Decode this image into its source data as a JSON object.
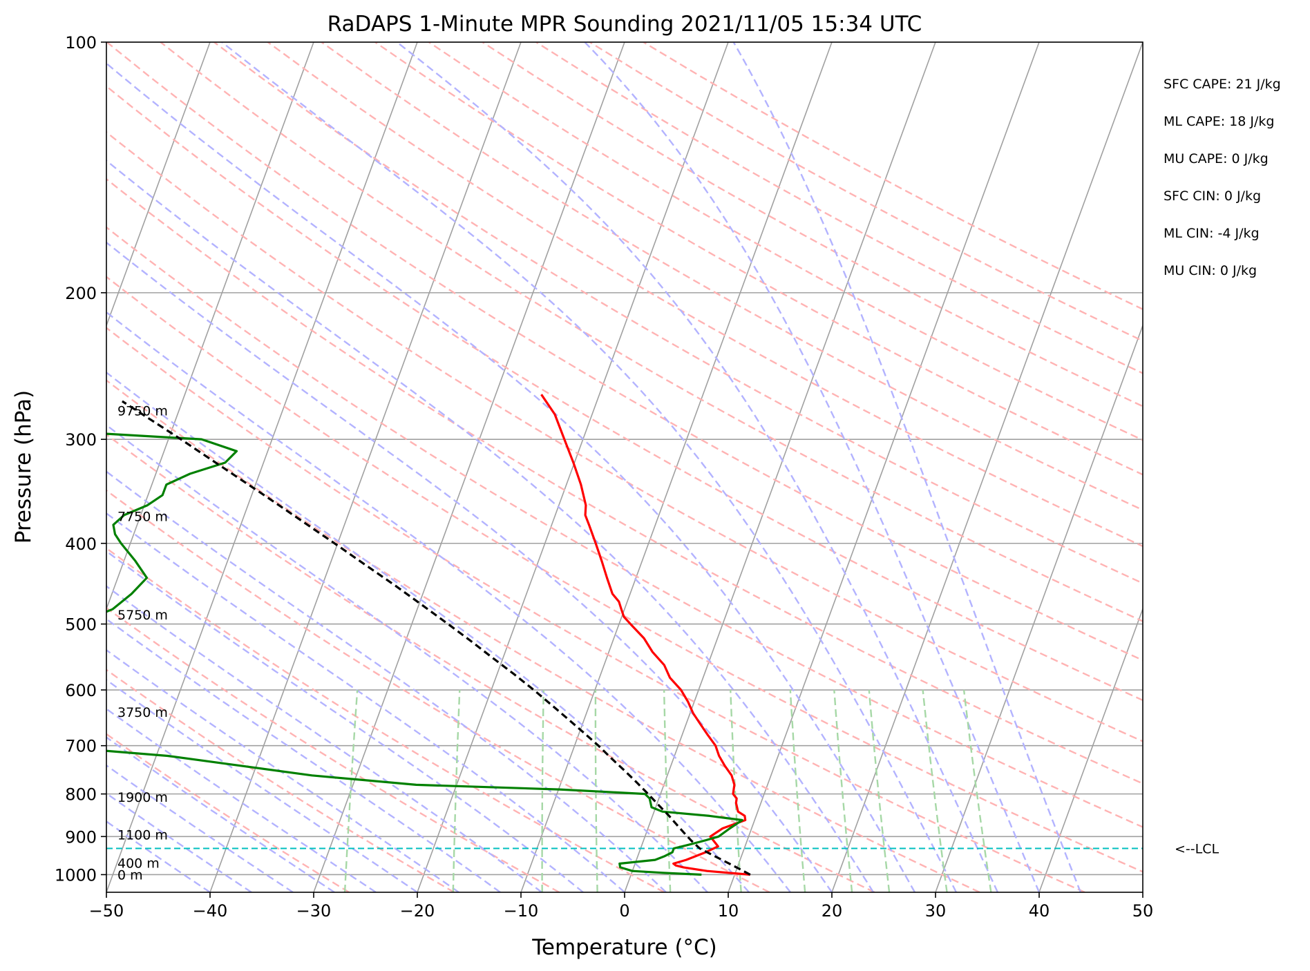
{
  "chart_data": {
    "type": "line",
    "title": "RaDAPS 1-Minute MPR Sounding 2021/11/05 15:34 UTC",
    "xlabel": "Temperature (°C)",
    "ylabel": "Pressure (hPa)",
    "xlim": [
      -50,
      50
    ],
    "ylim": [
      1050,
      100
    ],
    "y_scale": "log",
    "grid": true,
    "x_ticks": [
      -50,
      -40,
      -30,
      -20,
      -10,
      0,
      10,
      20,
      30,
      40,
      50
    ],
    "x_tick_labels": [
      "−50",
      "−40",
      "−30",
      "−20",
      "−10",
      "0",
      "10",
      "20",
      "30",
      "40",
      "50"
    ],
    "y_ticks": [
      1000,
      900,
      800,
      700,
      600,
      500,
      400,
      300,
      200,
      100
    ],
    "y_tick_labels": [
      "1000",
      "900",
      "800",
      "700",
      "600",
      "500",
      "400",
      "300",
      "200",
      "100"
    ],
    "colors": {
      "temperature": "#ff0000",
      "dewpoint": "#008000",
      "parcel": "#000000",
      "dry_adiabats": "#ffb3b3",
      "moist_adiabats": "#b3b3ff",
      "mixing_ratio": "#a6d8a6",
      "isotherms": "#a0a0a0",
      "lcl_line": "#00bfbf"
    },
    "series": [
      {
        "key": "temperature",
        "pressure": [
          1000,
          990,
          980,
          975,
          970,
          960,
          940,
          925,
          900,
          880,
          860,
          850,
          840,
          820,
          810,
          800,
          780,
          760,
          740,
          720,
          700,
          680,
          660,
          640,
          620,
          600,
          580,
          560,
          540,
          520,
          500,
          490,
          480,
          470,
          460,
          440,
          420,
          400,
          380,
          370,
          360,
          340,
          320,
          300,
          280,
          265
        ],
        "values": [
          11.5,
          7.2,
          4.8,
          4.0,
          3.7,
          4.8,
          6.4,
          7.4,
          6.3,
          7.2,
          9.1,
          8.9,
          8.1,
          7.6,
          7.5,
          7.0,
          6.8,
          6.2,
          5.2,
          4.3,
          3.6,
          2.5,
          1.4,
          0.3,
          -0.6,
          -1.7,
          -3.2,
          -4.2,
          -5.8,
          -7.1,
          -8.9,
          -9.8,
          -10.3,
          -10.8,
          -11.7,
          -12.8,
          -13.9,
          -15.1,
          -16.4,
          -17.1,
          -17.4,
          -18.6,
          -20.1,
          -21.8,
          -23.6,
          -25.6
        ]
      },
      {
        "key": "dewpoint",
        "pressure": [
          1000,
          995,
          990,
          980,
          970,
          960,
          950,
          940,
          930,
          920,
          910,
          900,
          880,
          860,
          850,
          840,
          830,
          810,
          800,
          790,
          780,
          760,
          740,
          720,
          700,
          680,
          660,
          640,
          620,
          600,
          580,
          560,
          540,
          520,
          500,
          480,
          460,
          440,
          420,
          400,
          390,
          380,
          370,
          360,
          350,
          340,
          330,
          320,
          310,
          300,
          295
        ],
        "values": [
          6.8,
          3.0,
          0.0,
          -1.3,
          -1.5,
          1.8,
          2.6,
          3.2,
          3.2,
          4.6,
          5.9,
          7.1,
          7.9,
          8.8,
          5.5,
          0.8,
          -0.4,
          -0.9,
          -1.5,
          -9.9,
          -23.9,
          -34.3,
          -41.5,
          -48.9,
          -61.3,
          -63.4,
          -64.1,
          -64.4,
          -62.1,
          -61.0,
          -61.2,
          -62.3,
          -62.3,
          -62.6,
          -62.4,
          -59.4,
          -58.1,
          -57.2,
          -58.9,
          -60.9,
          -61.8,
          -62.3,
          -61.6,
          -59.7,
          -58.6,
          -58.6,
          -56.7,
          -53.7,
          -53.0,
          -56.8,
          -67.0
        ]
      },
      {
        "key": "parcel",
        "pressure": [
          1000,
          975,
          950,
          930,
          910,
          890,
          870,
          850,
          825,
          800,
          775,
          750,
          725,
          700,
          675,
          650,
          625,
          600,
          575,
          550,
          525,
          500,
          475,
          450,
          425,
          400,
          375,
          350,
          325,
          300,
          285,
          270
        ],
        "values": [
          11.5,
          9.5,
          7.4,
          5.7,
          4.6,
          3.6,
          2.6,
          1.6,
          0.2,
          -1.2,
          -2.7,
          -4.3,
          -6.0,
          -7.7,
          -9.6,
          -11.6,
          -13.7,
          -15.9,
          -18.3,
          -20.9,
          -23.6,
          -26.5,
          -29.6,
          -32.9,
          -36.5,
          -40.3,
          -44.4,
          -48.8,
          -53.6,
          -58.8,
          -62.2,
          -65.8
        ]
      }
    ],
    "lcl": {
      "pressure": 930,
      "label": "<--LCL"
    },
    "height_labels": [
      {
        "text": "9750 m",
        "pressure": 277
      },
      {
        "text": "7750 m",
        "pressure": 371
      },
      {
        "text": "5750 m",
        "pressure": 487
      },
      {
        "text": "3750 m",
        "pressure": 638
      },
      {
        "text": "1900 m",
        "pressure": 807
      },
      {
        "text": "1100 m",
        "pressure": 895
      },
      {
        "text": "400 m",
        "pressure": 968
      },
      {
        "text": "0 m",
        "pressure": 1000
      }
    ],
    "indices": [
      "SFC CAPE: 21 J/kg",
      "ML CAPE: 18 J/kg",
      "MU CAPE: 0 J/kg",
      "SFC CIN: 0 J/kg",
      "ML CIN: -4 J/kg",
      "MU CIN: 0 J/kg"
    ]
  }
}
